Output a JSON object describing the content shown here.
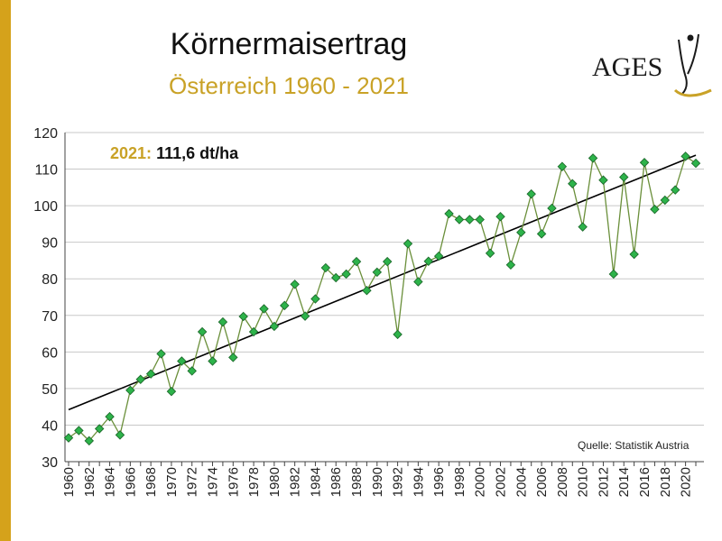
{
  "header": {
    "title": "Körnermaisertrag",
    "subtitle": "Österreich 1960 - 2021"
  },
  "logo": {
    "text": "AGES",
    "icon": "human-figure-icon"
  },
  "annotation": {
    "year": "2021:",
    "value": "111,6 dt/ha"
  },
  "source": "Quelle: Statistik Austria",
  "colors": {
    "accent": "#c9a227",
    "side_bar": "#d5a21b",
    "marker_fill": "#2db34a",
    "marker_stroke": "#1e6b2d",
    "line": "#6a8f3a",
    "trend": "#000000",
    "grid": "#c8c8c8"
  },
  "chart_data": {
    "type": "line",
    "title": "Körnermaisertrag",
    "subtitle": "Österreich 1960 - 2021",
    "xlabel": "",
    "ylabel": "",
    "ylim": [
      30,
      120
    ],
    "yticks": [
      30,
      40,
      50,
      60,
      70,
      80,
      90,
      100,
      110,
      120
    ],
    "x": [
      1960,
      1961,
      1962,
      1963,
      1964,
      1965,
      1966,
      1967,
      1968,
      1969,
      1970,
      1971,
      1972,
      1973,
      1974,
      1975,
      1976,
      1977,
      1978,
      1979,
      1980,
      1981,
      1982,
      1983,
      1984,
      1985,
      1986,
      1987,
      1988,
      1989,
      1990,
      1991,
      1992,
      1993,
      1994,
      1995,
      1996,
      1997,
      1998,
      1999,
      2000,
      2001,
      2002,
      2003,
      2004,
      2005,
      2006,
      2007,
      2008,
      2009,
      2010,
      2011,
      2012,
      2013,
      2014,
      2015,
      2016,
      2017,
      2018,
      2019,
      2020,
      2021
    ],
    "xtick_labels": [
      "1960",
      "1962",
      "1964",
      "1966",
      "1968",
      "1970",
      "1972",
      "1974",
      "1976",
      "1978",
      "1980",
      "1982",
      "1984",
      "1986",
      "1988",
      "1990",
      "1992",
      "1994",
      "1996",
      "1998",
      "2000",
      "2002",
      "2004",
      "2006",
      "2008",
      "2010",
      "2012",
      "2014",
      "2016",
      "2018",
      "2020"
    ],
    "grid": true,
    "legend": "none",
    "series": [
      {
        "values": [
          36.5,
          38.5,
          35.7,
          39.0,
          42.3,
          37.3,
          49.5,
          52.5,
          54.0,
          59.5,
          49.2,
          57.5,
          54.8,
          65.5,
          57.5,
          68.2,
          58.5,
          69.7,
          65.5,
          71.8,
          67.0,
          72.7,
          78.5,
          69.8,
          74.5,
          83.0,
          80.3,
          81.3,
          84.7,
          76.8,
          81.8,
          84.7,
          64.8,
          89.6,
          79.2,
          84.8,
          86.2,
          97.8,
          96.2,
          96.2,
          96.2,
          87.0,
          97.0,
          83.8,
          92.7,
          103.2,
          92.3,
          99.3,
          110.7,
          106.0,
          94.2,
          113.0,
          107.0,
          81.3,
          107.8,
          86.7,
          111.8,
          99.0,
          101.5,
          104.3,
          113.5,
          111.6
        ]
      }
    ],
    "trend": {
      "x": [
        1960,
        2021
      ],
      "y": [
        44.2,
        113.8
      ]
    }
  }
}
